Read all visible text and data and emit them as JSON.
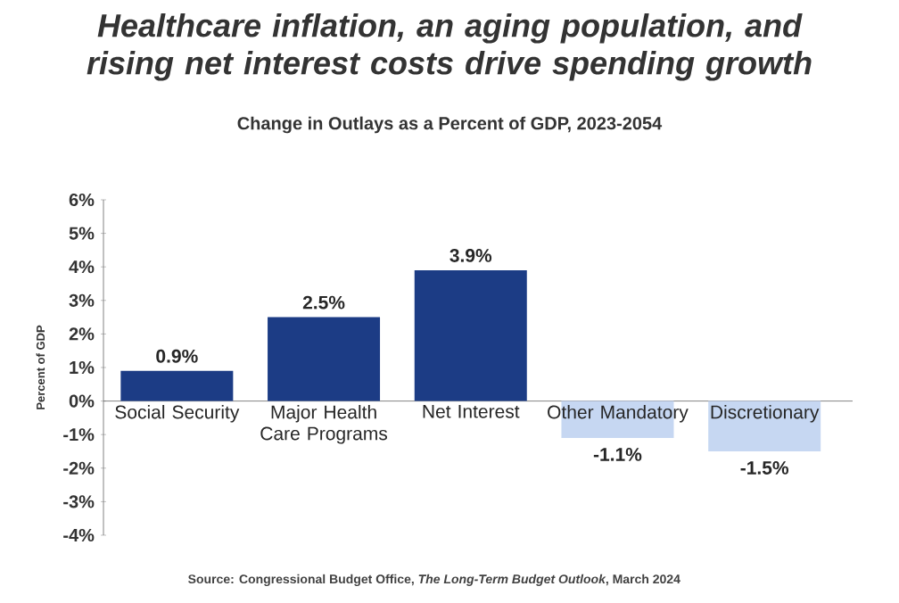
{
  "chart_data": {
    "type": "bar",
    "title": "Healthcare inflation, an aging population, and rising net interest costs drive spending growth",
    "subtitle": "Change in Outlays as a Percent of GDP, 2023-2054",
    "ylabel": "Percent of GDP",
    "categories": [
      "Social Security",
      "Major Health Care Programs",
      "Net Interest",
      "Other Mandatory",
      "Discretionary"
    ],
    "values": [
      0.9,
      2.5,
      3.9,
      -1.1,
      -1.5
    ],
    "colors": [
      "#1c3c85",
      "#1c3c85",
      "#1c3c85",
      "#c6d7f2",
      "#c6d7f2"
    ],
    "value_labels": [
      "0.9%",
      "2.5%",
      "3.9%",
      "-1.1%",
      "-1.5%"
    ],
    "ylim": [
      -4,
      6
    ],
    "yticks": [
      {
        "value": -4,
        "label": "-4%"
      },
      {
        "value": -3,
        "label": "-3%"
      },
      {
        "value": -2,
        "label": "-2%"
      },
      {
        "value": -1,
        "label": "-1%"
      },
      {
        "value": 0,
        "label": "0%"
      },
      {
        "value": 1,
        "label": "1%"
      },
      {
        "value": 2,
        "label": "2%"
      },
      {
        "value": 3,
        "label": "3%"
      },
      {
        "value": 4,
        "label": "4%"
      },
      {
        "value": 5,
        "label": "5%"
      },
      {
        "value": 6,
        "label": "6%"
      }
    ],
    "grid": false,
    "annotations": [
      "Source: Congressional Budget Office, *The Long-Term Budget Outlook*, March 2024"
    ]
  }
}
